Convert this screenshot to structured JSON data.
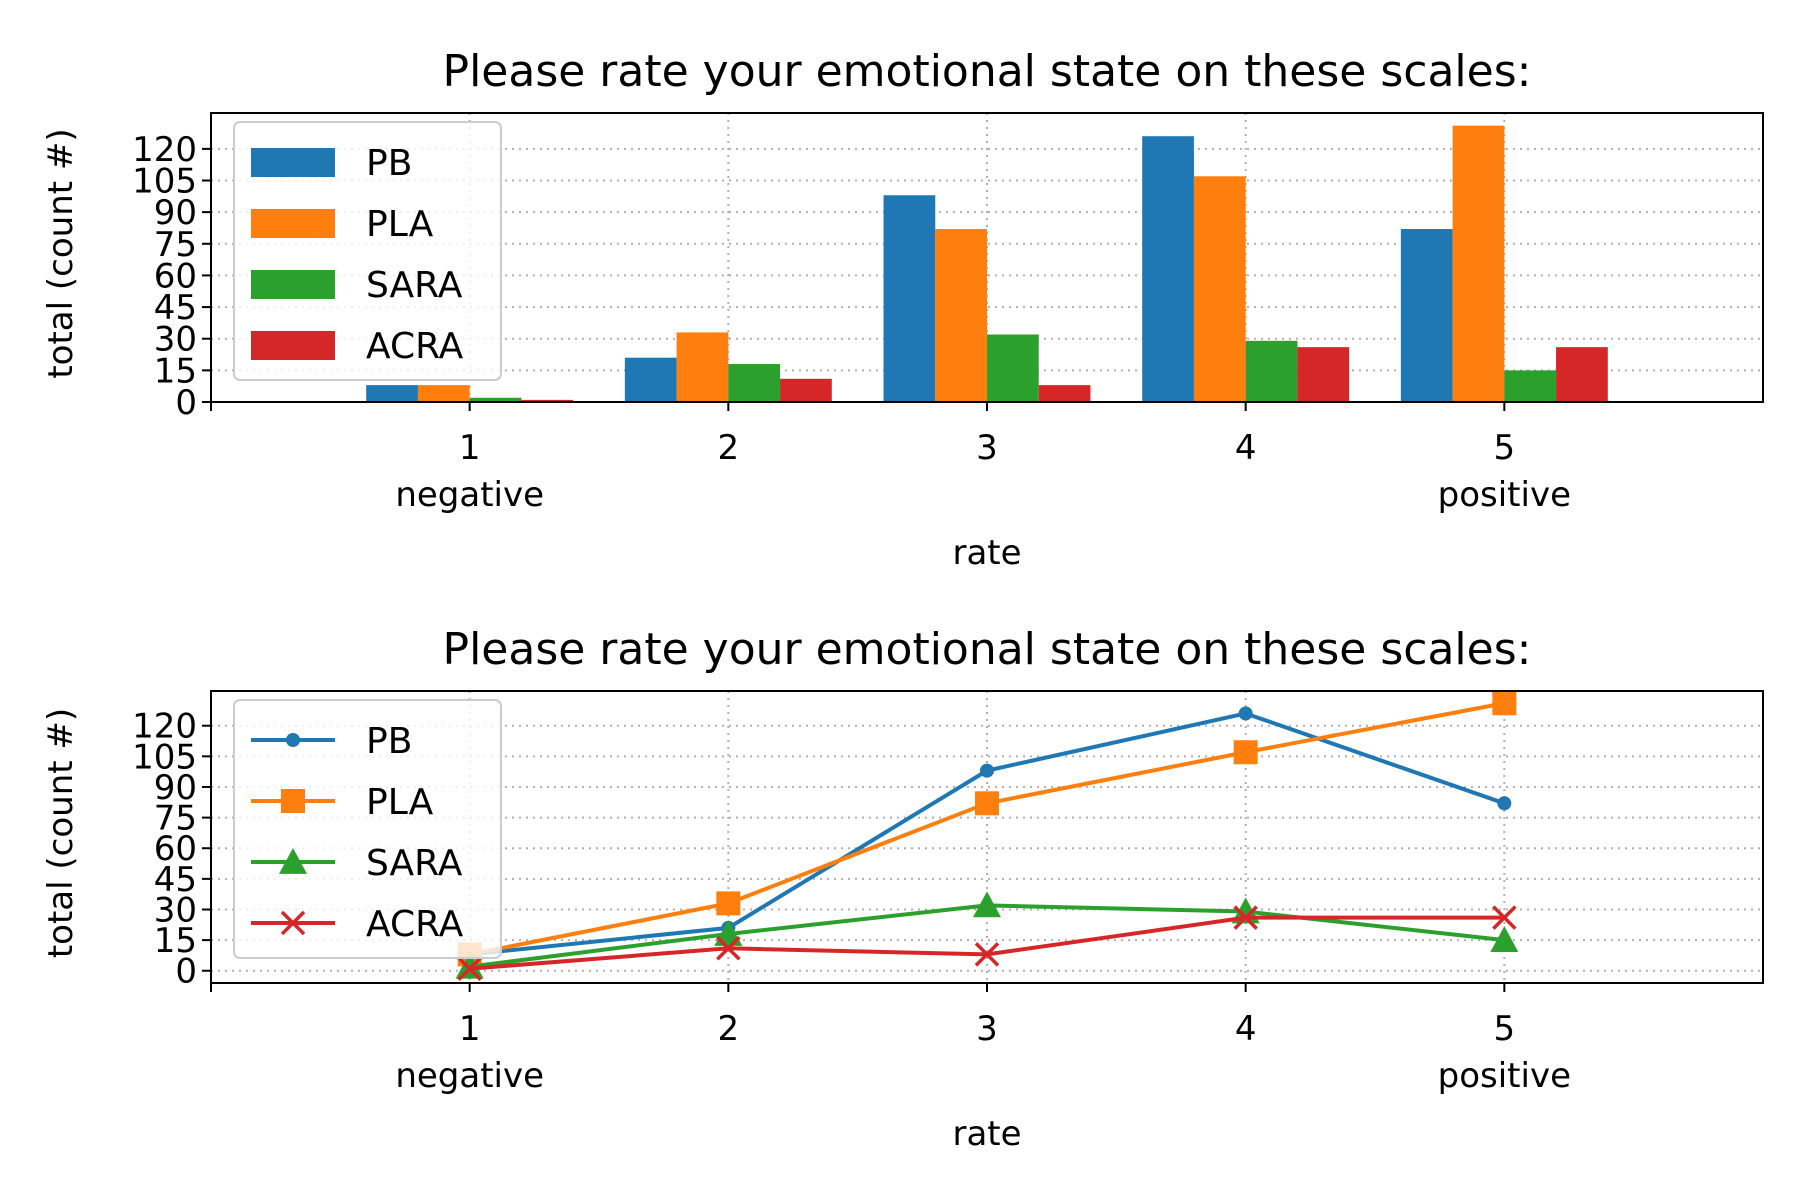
{
  "chart_data": [
    {
      "type": "bar",
      "title": "Please rate your emotional state on these scales:",
      "xlabel": "rate",
      "ylabel": "total (count #)",
      "categories": [
        "1",
        "2",
        "3",
        "4",
        "5"
      ],
      "category_sublabels": [
        "negative",
        "",
        "",
        "",
        "positive"
      ],
      "yticks": [
        0,
        15,
        30,
        45,
        60,
        75,
        90,
        105,
        120
      ],
      "xlim": [
        0,
        6
      ],
      "ylim": [
        0,
        137
      ],
      "grid": true,
      "legend_position": "upper-left",
      "series": [
        {
          "name": "PB",
          "color": "#1f77b4",
          "values": [
            8,
            21,
            98,
            126,
            82
          ]
        },
        {
          "name": "PLA",
          "color": "#ff7f0e",
          "values": [
            8,
            33,
            82,
            107,
            131
          ]
        },
        {
          "name": "SARA",
          "color": "#2ca02c",
          "values": [
            2,
            18,
            32,
            29,
            15
          ]
        },
        {
          "name": "ACRA",
          "color": "#d62728",
          "values": [
            1,
            11,
            8,
            26,
            26
          ]
        }
      ]
    },
    {
      "type": "line",
      "title": "Please rate your emotional state on these scales:",
      "xlabel": "rate",
      "ylabel": "total (count #)",
      "categories": [
        "1",
        "2",
        "3",
        "4",
        "5"
      ],
      "category_sublabels": [
        "negative",
        "",
        "",
        "",
        "positive"
      ],
      "yticks": [
        0,
        15,
        30,
        45,
        60,
        75,
        90,
        105,
        120
      ],
      "xlim": [
        0,
        6
      ],
      "ylim": [
        -6,
        137
      ],
      "grid": true,
      "legend_position": "upper-left",
      "series": [
        {
          "name": "PB",
          "color": "#1f77b4",
          "marker": "circle",
          "values": [
            8,
            21,
            98,
            126,
            82
          ]
        },
        {
          "name": "PLA",
          "color": "#ff7f0e",
          "marker": "square",
          "values": [
            8,
            33,
            82,
            107,
            131
          ]
        },
        {
          "name": "SARA",
          "color": "#2ca02c",
          "marker": "triangle",
          "values": [
            2,
            18,
            32,
            29,
            15
          ]
        },
        {
          "name": "ACRA",
          "color": "#d62728",
          "marker": "x",
          "values": [
            1,
            11,
            8,
            26,
            26
          ]
        }
      ]
    }
  ]
}
